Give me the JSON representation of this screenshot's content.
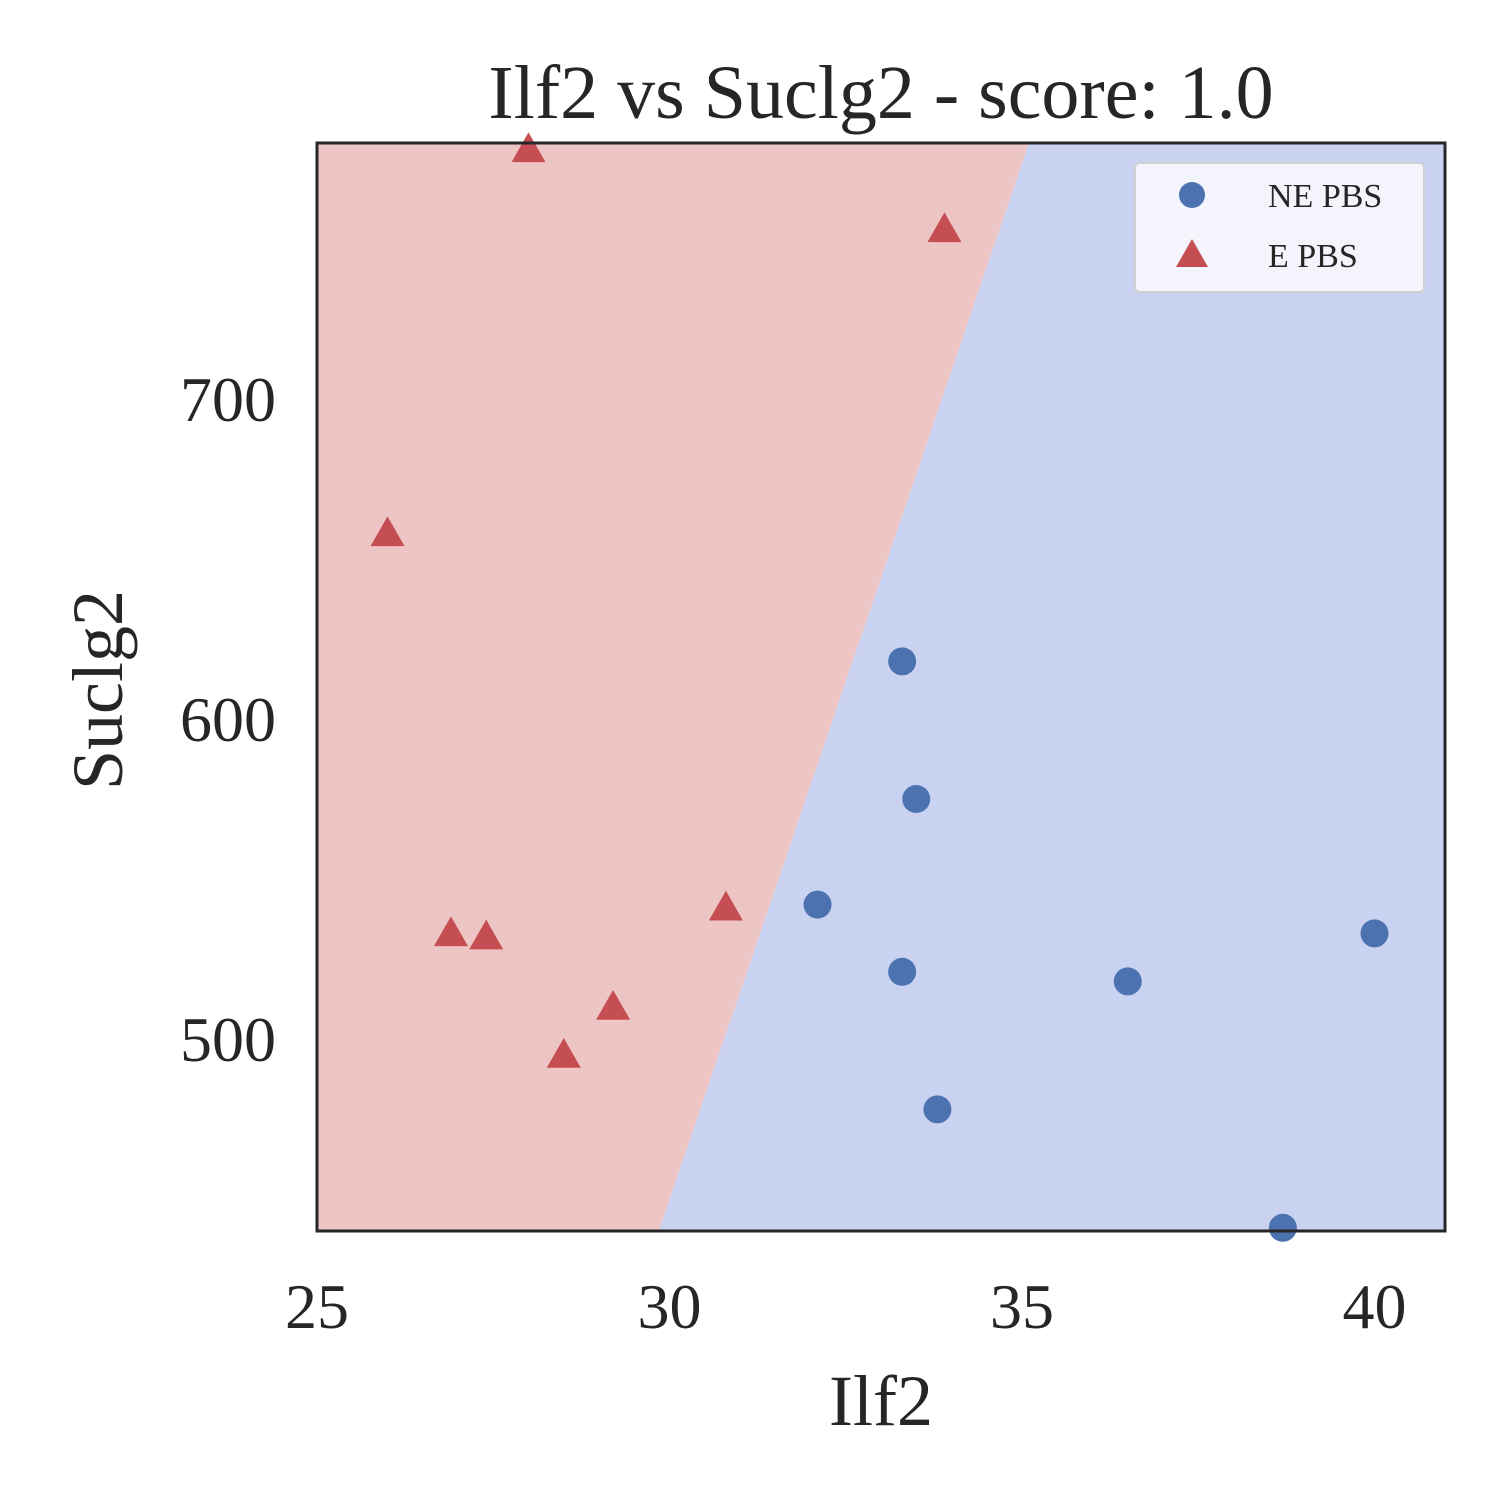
{
  "chart_data": {
    "type": "scatter",
    "title": "Ilf2 vs Suclg2 - score: 1.0",
    "xlabel": "Ilf2",
    "ylabel": "Suclg2",
    "xlim": [
      25,
      41
    ],
    "ylim": [
      440,
      780
    ],
    "x_ticks": [
      25,
      30,
      35,
      40
    ],
    "y_ticks": [
      500,
      600,
      700
    ],
    "x_tick_labels": [
      "25",
      "30",
      "35",
      "40"
    ],
    "y_tick_labels": [
      "500",
      "600",
      "700"
    ],
    "grid": false,
    "legend": {
      "position": "top-right",
      "entries": [
        "NE PBS",
        "E PBS"
      ]
    },
    "decision_boundary": {
      "points": [
        [
          29.85,
          440
        ],
        [
          35.1,
          780
        ]
      ],
      "left_region_color": "#eec5c5",
      "right_region_color": "#c9d2f1"
    },
    "series": [
      {
        "name": "NE PBS",
        "marker": "circle",
        "color": "#4c72b0",
        "points": [
          [
            33.3,
            618
          ],
          [
            33.5,
            575
          ],
          [
            32.1,
            542
          ],
          [
            33.3,
            521
          ],
          [
            36.5,
            518
          ],
          [
            33.8,
            478
          ],
          [
            40.0,
            533
          ],
          [
            38.7,
            441
          ]
        ]
      },
      {
        "name": "E PBS",
        "marker": "triangle",
        "color": "#c44e52",
        "points": [
          [
            28.0,
            778
          ],
          [
            33.9,
            753
          ],
          [
            26.0,
            658
          ],
          [
            30.8,
            541
          ],
          [
            26.9,
            533
          ],
          [
            27.4,
            532
          ],
          [
            29.2,
            510
          ],
          [
            28.5,
            495
          ]
        ]
      }
    ]
  }
}
